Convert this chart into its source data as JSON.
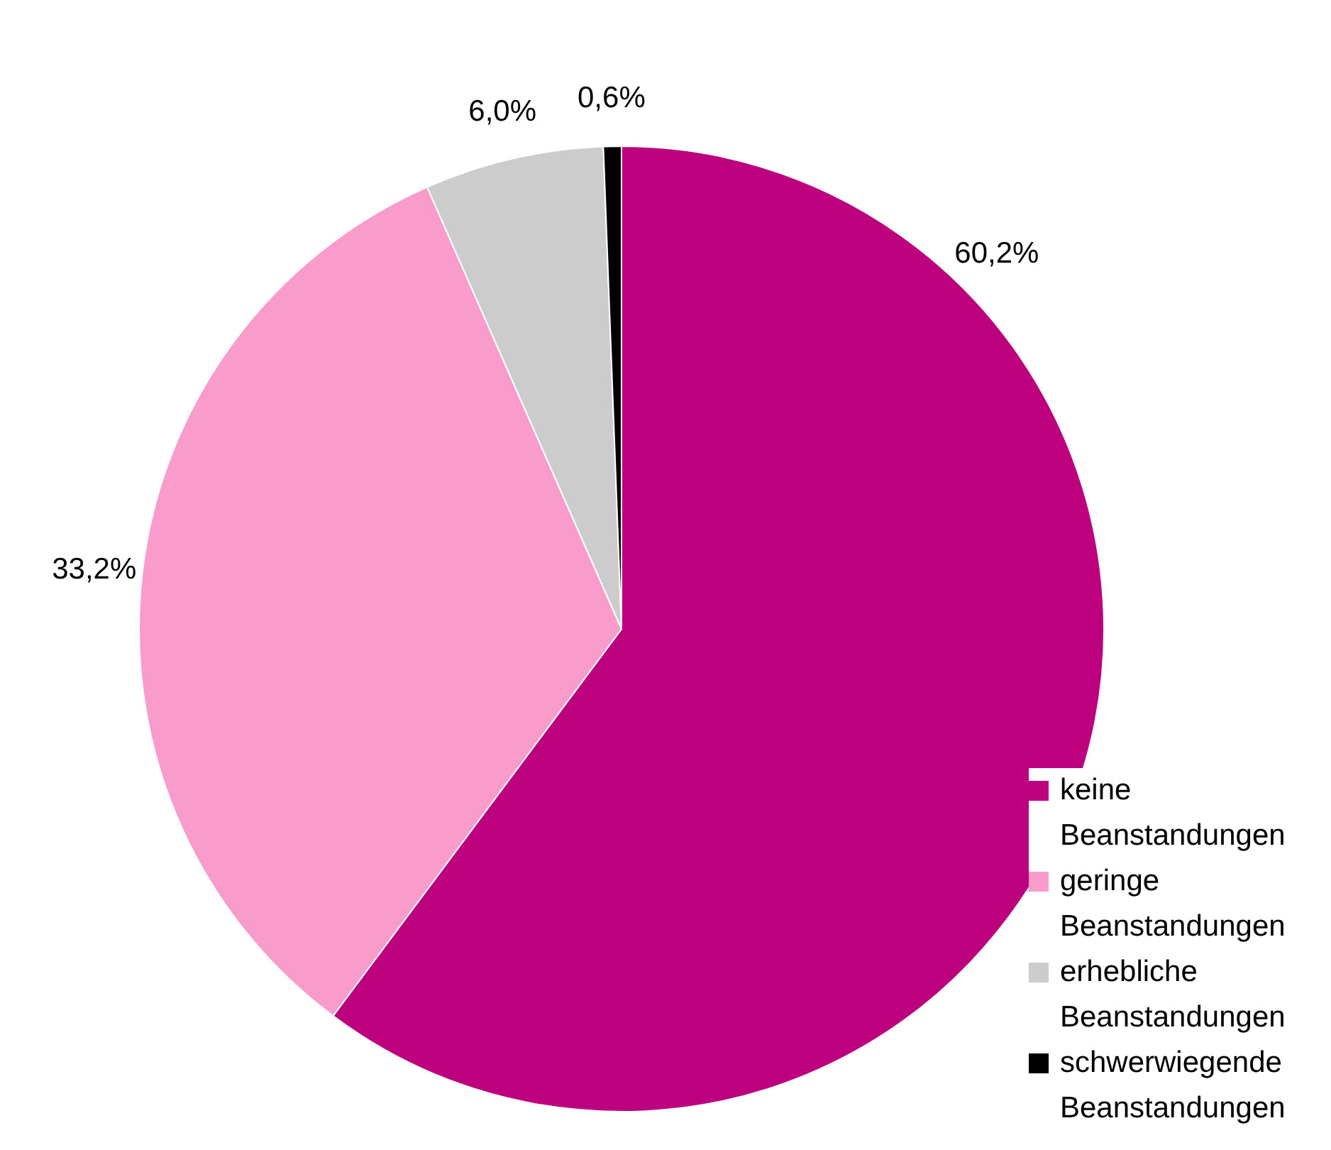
{
  "chart_data": {
    "type": "pie",
    "categories": [
      "keine Beanstandungen",
      "geringe Beanstandungen",
      "erhebliche Beanstandungen",
      "schwerwiegende Beanstandungen"
    ],
    "values": [
      60.2,
      33.2,
      6.0,
      0.6
    ],
    "value_labels": [
      "60,2%",
      "33,2%",
      "6,0%",
      "0,6%"
    ],
    "colors": [
      "#bc007e",
      "#f99ccb",
      "#cccccc",
      "#000000"
    ],
    "legend": "bottom right"
  }
}
